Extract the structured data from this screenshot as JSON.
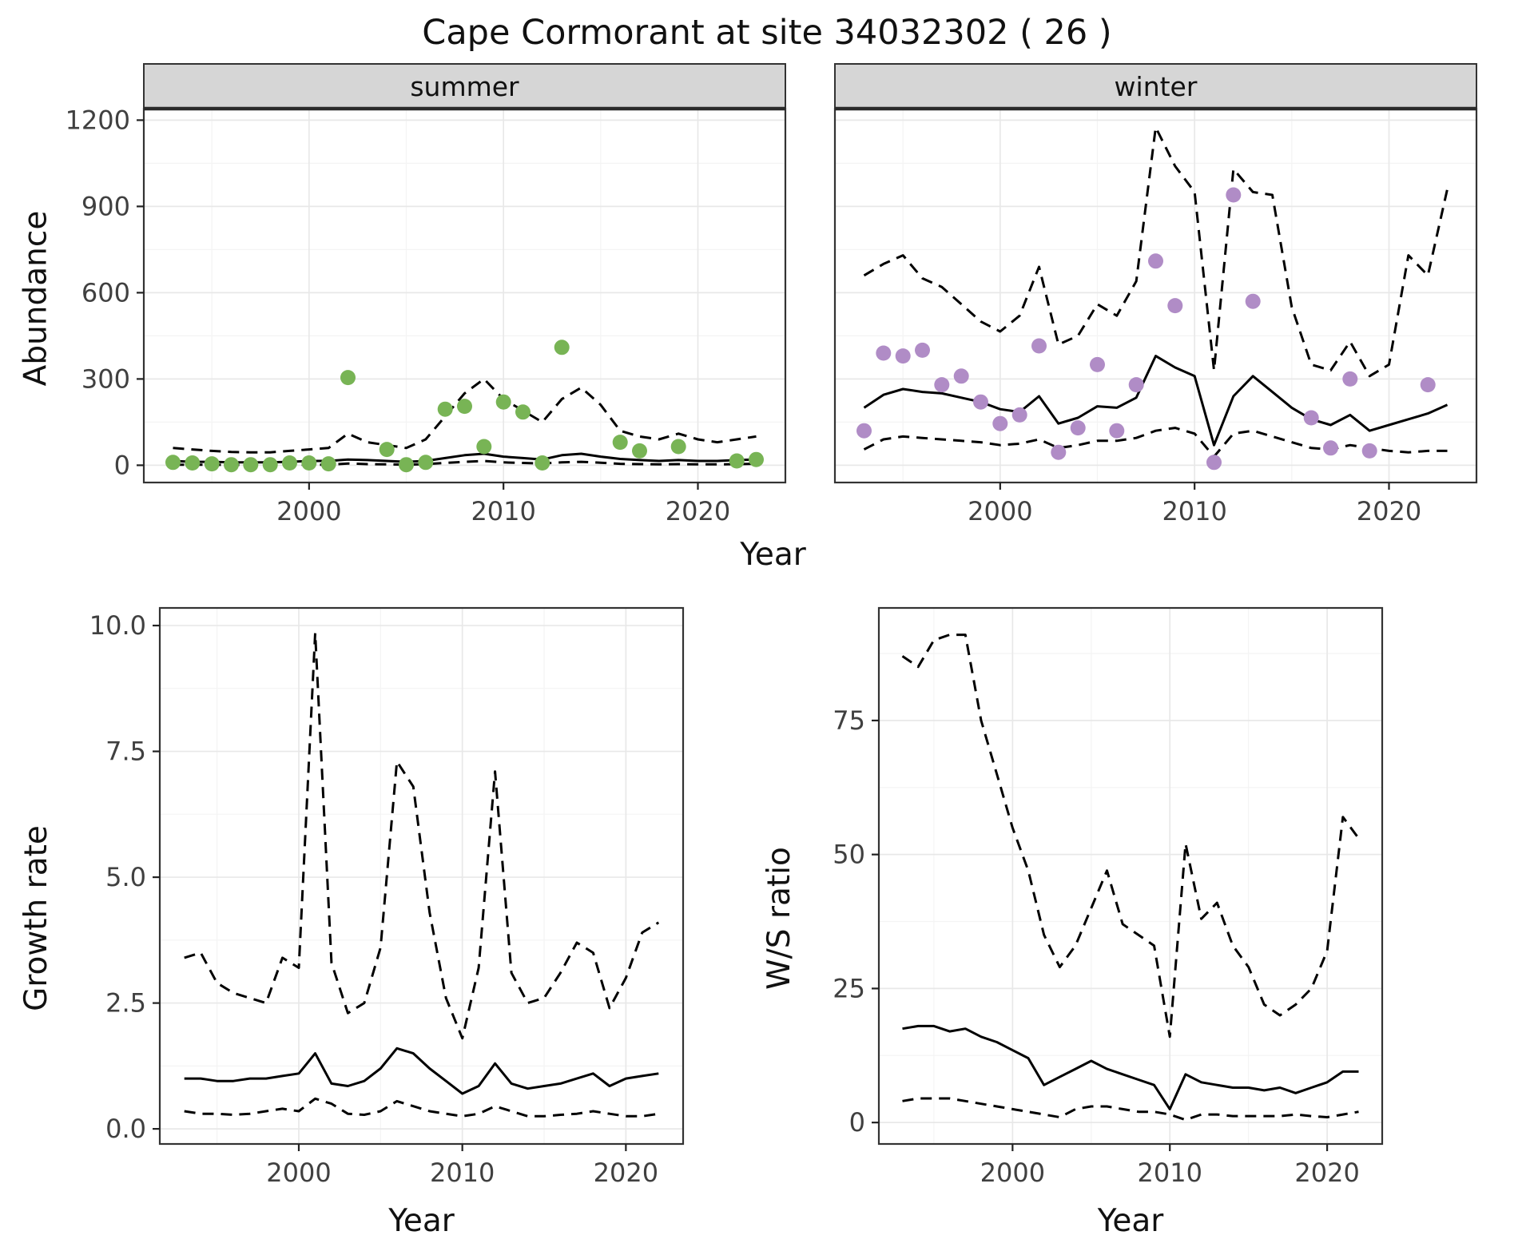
{
  "title": "Cape Cormorant at site 34032302 ( 26 )",
  "chart_data": [
    {
      "type": "line",
      "facet": "summer",
      "xlabel": "Year",
      "ylabel": "Abundance",
      "x_domain": [
        1991.5,
        2024.5
      ],
      "y_domain": [
        -60,
        1240
      ],
      "x_ticks": [
        2000,
        2010,
        2020
      ],
      "y_ticks": [
        0,
        300,
        600,
        900,
        1200
      ],
      "y_tick_labels": [
        "0",
        "300",
        "600",
        "900",
        "1200"
      ],
      "years": [
        1993,
        1994,
        1995,
        1996,
        1997,
        1998,
        1999,
        2000,
        2001,
        2002,
        2003,
        2004,
        2005,
        2006,
        2007,
        2008,
        2009,
        2010,
        2011,
        2012,
        2013,
        2014,
        2015,
        2016,
        2017,
        2018,
        2019,
        2020,
        2021,
        2022,
        2023
      ],
      "series": [
        {
          "name": "upper_ci",
          "style": "dashed",
          "values": [
            60,
            55,
            50,
            46,
            45,
            45,
            50,
            55,
            60,
            110,
            80,
            70,
            60,
            90,
            170,
            250,
            300,
            230,
            190,
            150,
            230,
            270,
            210,
            120,
            100,
            90,
            110,
            90,
            80,
            90,
            100
          ]
        },
        {
          "name": "lower_ci",
          "style": "dashed",
          "values": [
            2,
            2,
            2,
            1,
            1,
            1,
            2,
            2,
            2,
            6,
            4,
            3,
            2,
            4,
            8,
            12,
            15,
            10,
            8,
            6,
            10,
            12,
            9,
            5,
            4,
            3,
            4,
            3,
            3,
            4,
            5
          ]
        },
        {
          "name": "fit",
          "style": "solid",
          "values": [
            15,
            12,
            12,
            10,
            10,
            10,
            12,
            15,
            15,
            20,
            18,
            15,
            12,
            15,
            25,
            35,
            40,
            30,
            25,
            20,
            35,
            40,
            30,
            22,
            18,
            15,
            18,
            15,
            15,
            18,
            20
          ]
        }
      ],
      "points": {
        "name": "summer-observations",
        "color": "#78b455",
        "data": [
          [
            1993,
            10
          ],
          [
            1994,
            8
          ],
          [
            1995,
            5
          ],
          [
            1996,
            2
          ],
          [
            1997,
            2
          ],
          [
            1998,
            2
          ],
          [
            1999,
            8
          ],
          [
            2000,
            8
          ],
          [
            2001,
            5
          ],
          [
            2002,
            305
          ],
          [
            2004,
            55
          ],
          [
            2005,
            2
          ],
          [
            2006,
            10
          ],
          [
            2007,
            195
          ],
          [
            2008,
            205
          ],
          [
            2009,
            65
          ],
          [
            2010,
            220
          ],
          [
            2011,
            185
          ],
          [
            2012,
            8
          ],
          [
            2013,
            410
          ],
          [
            2016,
            80
          ],
          [
            2017,
            50
          ],
          [
            2019,
            65
          ],
          [
            2022,
            15
          ],
          [
            2023,
            20
          ]
        ]
      }
    },
    {
      "type": "line",
      "facet": "winter",
      "xlabel": "Year",
      "ylabel": "Abundance",
      "x_domain": [
        1991.5,
        2024.5
      ],
      "y_domain": [
        -60,
        1240
      ],
      "x_ticks": [
        2000,
        2010,
        2020
      ],
      "y_ticks": [
        0,
        300,
        600,
        900,
        1200
      ],
      "y_tick_labels": [
        "0",
        "300",
        "600",
        "900",
        "1200"
      ],
      "years": [
        1993,
        1994,
        1995,
        1996,
        1997,
        1998,
        1999,
        2000,
        2001,
        2002,
        2003,
        2004,
        2005,
        2006,
        2007,
        2008,
        2009,
        2010,
        2011,
        2012,
        2013,
        2014,
        2015,
        2016,
        2017,
        2018,
        2019,
        2020,
        2021,
        2022,
        2023
      ],
      "series": [
        {
          "name": "upper_ci",
          "style": "dashed",
          "values": [
            660,
            700,
            730,
            650,
            620,
            560,
            500,
            465,
            520,
            690,
            420,
            450,
            560,
            520,
            640,
            1175,
            1040,
            950,
            330,
            1030,
            950,
            940,
            550,
            350,
            330,
            430,
            310,
            350,
            730,
            660,
            960
          ]
        },
        {
          "name": "lower_ci",
          "style": "dashed",
          "values": [
            55,
            90,
            100,
            95,
            90,
            85,
            80,
            70,
            75,
            90,
            60,
            70,
            85,
            85,
            95,
            120,
            130,
            110,
            30,
            110,
            120,
            100,
            80,
            60,
            55,
            70,
            60,
            50,
            45,
            50,
            50
          ]
        },
        {
          "name": "fit",
          "style": "solid",
          "values": [
            200,
            245,
            265,
            255,
            250,
            235,
            220,
            195,
            185,
            240,
            145,
            165,
            205,
            200,
            235,
            380,
            340,
            310,
            70,
            240,
            310,
            255,
            200,
            160,
            140,
            175,
            120,
            140,
            160,
            180,
            210
          ]
        }
      ],
      "points": {
        "name": "winter-observations",
        "color": "#b08cc6",
        "data": [
          [
            1993,
            120
          ],
          [
            1994,
            390
          ],
          [
            1995,
            380
          ],
          [
            1996,
            400
          ],
          [
            1997,
            280
          ],
          [
            1998,
            310
          ],
          [
            1999,
            220
          ],
          [
            2000,
            145
          ],
          [
            2001,
            175
          ],
          [
            2002,
            415
          ],
          [
            2003,
            45
          ],
          [
            2004,
            130
          ],
          [
            2005,
            350
          ],
          [
            2006,
            120
          ],
          [
            2007,
            280
          ],
          [
            2008,
            710
          ],
          [
            2009,
            555
          ],
          [
            2011,
            10
          ],
          [
            2012,
            940
          ],
          [
            2013,
            570
          ],
          [
            2016,
            165
          ],
          [
            2017,
            60
          ],
          [
            2018,
            300
          ],
          [
            2019,
            50
          ],
          [
            2022,
            280
          ]
        ]
      }
    },
    {
      "type": "line",
      "facet": null,
      "xlabel": "Year",
      "ylabel": "Growth rate",
      "x_domain": [
        1991.5,
        2023.5
      ],
      "y_domain": [
        -0.3,
        10.35
      ],
      "x_ticks": [
        2000,
        2010,
        2020
      ],
      "y_ticks": [
        0,
        2.5,
        5,
        7.5,
        10
      ],
      "y_tick_labels": [
        "0.0",
        "2.5",
        "5.0",
        "7.5",
        "10.0"
      ],
      "years": [
        1993,
        1994,
        1995,
        1996,
        1997,
        1998,
        1999,
        2000,
        2001,
        2002,
        2003,
        2004,
        2005,
        2006,
        2007,
        2008,
        2009,
        2010,
        2011,
        2012,
        2013,
        2014,
        2015,
        2016,
        2017,
        2018,
        2019,
        2020,
        2021,
        2022
      ],
      "series": [
        {
          "name": "upper_ci",
          "style": "dashed",
          "values": [
            3.4,
            3.5,
            2.9,
            2.7,
            2.6,
            2.5,
            3.4,
            3.2,
            9.85,
            3.3,
            2.3,
            2.5,
            3.6,
            7.3,
            6.8,
            4.3,
            2.6,
            1.8,
            3.2,
            7.1,
            3.1,
            2.5,
            2.6,
            3.1,
            3.7,
            3.5,
            2.4,
            3.0,
            3.9,
            4.1
          ]
        },
        {
          "name": "lower_ci",
          "style": "dashed",
          "values": [
            0.35,
            0.3,
            0.3,
            0.28,
            0.3,
            0.35,
            0.4,
            0.35,
            0.6,
            0.5,
            0.3,
            0.28,
            0.35,
            0.55,
            0.45,
            0.35,
            0.3,
            0.25,
            0.3,
            0.45,
            0.35,
            0.25,
            0.25,
            0.28,
            0.3,
            0.35,
            0.3,
            0.25,
            0.25,
            0.3
          ]
        },
        {
          "name": "fit",
          "style": "solid",
          "values": [
            1.0,
            1.0,
            0.95,
            0.95,
            1.0,
            1.0,
            1.05,
            1.1,
            1.5,
            0.9,
            0.85,
            0.95,
            1.2,
            1.6,
            1.5,
            1.2,
            0.95,
            0.7,
            0.85,
            1.3,
            0.9,
            0.8,
            0.85,
            0.9,
            1.0,
            1.1,
            0.85,
            1.0,
            1.05,
            1.1
          ]
        }
      ],
      "points": null
    },
    {
      "type": "line",
      "facet": null,
      "xlabel": "Year",
      "ylabel": "W/S ratio",
      "x_domain": [
        1991.5,
        2023.5
      ],
      "y_domain": [
        -4,
        96
      ],
      "x_ticks": [
        2000,
        2010,
        2020
      ],
      "y_ticks": [
        0,
        25,
        50,
        75
      ],
      "y_tick_labels": [
        "0",
        "25",
        "50",
        "75"
      ],
      "years": [
        1993,
        1994,
        1995,
        1996,
        1997,
        1998,
        1999,
        2000,
        2001,
        2002,
        2003,
        2004,
        2005,
        2006,
        2007,
        2008,
        2009,
        2010,
        2011,
        2012,
        2013,
        2014,
        2015,
        2016,
        2017,
        2018,
        2019,
        2020,
        2021,
        2022
      ],
      "series": [
        {
          "name": "upper_ci",
          "style": "dashed",
          "values": [
            87,
            85,
            90,
            91,
            91,
            75,
            65,
            55,
            47,
            35,
            29,
            33,
            40,
            47,
            37,
            35,
            33,
            16,
            52,
            38,
            41,
            33,
            29,
            22,
            20,
            22,
            25,
            32,
            57,
            53
          ]
        },
        {
          "name": "lower_ci",
          "style": "dashed",
          "values": [
            4,
            4.5,
            4.5,
            4.5,
            4,
            3.5,
            3,
            2.5,
            2,
            1.5,
            1,
            2.5,
            3,
            3,
            2.5,
            2,
            2,
            1.5,
            0.5,
            1.5,
            1.5,
            1.2,
            1.2,
            1.2,
            1.2,
            1.5,
            1.2,
            1,
            1.5,
            2
          ]
        },
        {
          "name": "fit",
          "style": "solid",
          "values": [
            17.5,
            18,
            18,
            17,
            17.5,
            16,
            15,
            13.5,
            12,
            7,
            8.5,
            10,
            11.5,
            10,
            9,
            8,
            7,
            2.5,
            9,
            7.5,
            7,
            6.5,
            6.5,
            6,
            6.5,
            5.5,
            6.5,
            7.5,
            9.5,
            9.5
          ]
        }
      ],
      "points": null
    }
  ],
  "style": {
    "strip_bg": "#d6d6d6",
    "grid_major": "#e8e8e8",
    "grid_minor": "#f4f4f4",
    "line_color": "#000000",
    "border_color": "#333333",
    "tick_label_color": "#404040"
  }
}
